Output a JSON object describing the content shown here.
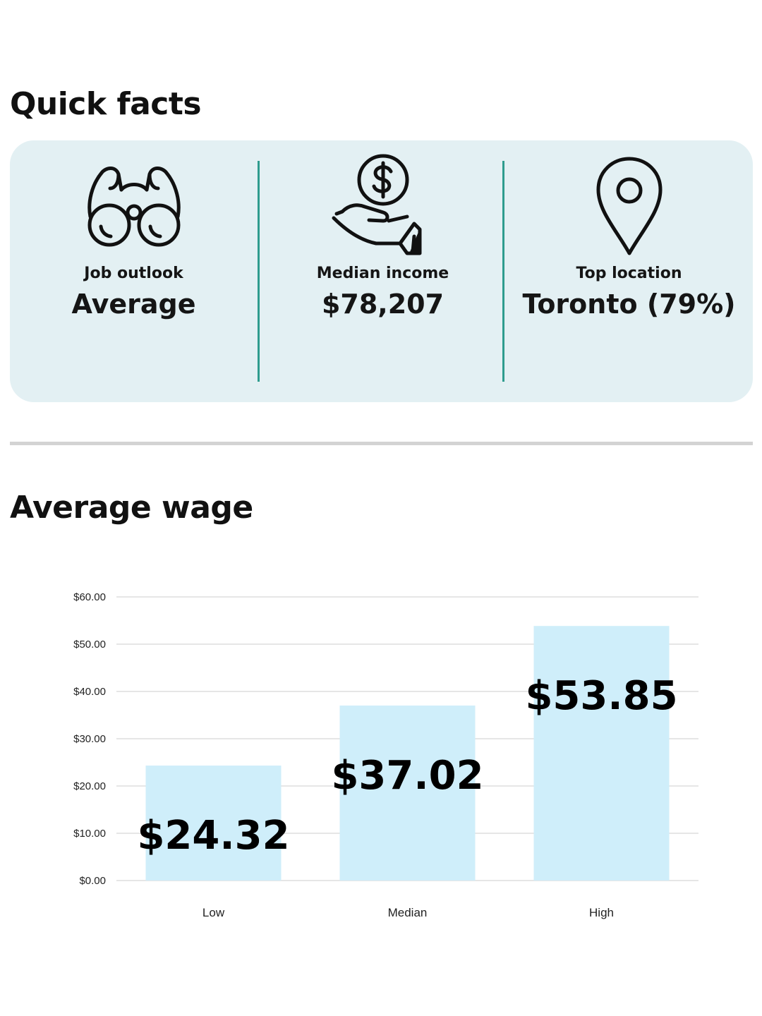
{
  "quick_facts": {
    "title": "Quick facts",
    "items": [
      {
        "icon": "binoculars-icon",
        "label": "Job outlook",
        "value": "Average"
      },
      {
        "icon": "money-hand-icon",
        "label": "Median income",
        "value": "$78,207"
      },
      {
        "icon": "location-pin-icon",
        "label": "Top location",
        "value": "Toronto (79%)"
      }
    ]
  },
  "average_wage": {
    "title": "Average wage"
  },
  "colors": {
    "card_background": "#e3f0f3",
    "divider": "#2e9c8e",
    "bar": "#cfeefa",
    "gridline": "#dddddd"
  },
  "chart_data": {
    "type": "bar",
    "categories": [
      "Low",
      "Median",
      "High"
    ],
    "values": [
      24.32,
      37.02,
      53.85
    ],
    "value_labels": [
      "$24.32",
      "$37.02",
      "$53.85"
    ],
    "ylim": [
      0,
      60
    ],
    "yticks": [
      0,
      10,
      20,
      30,
      40,
      50,
      60
    ],
    "ytick_labels": [
      "$0.00",
      "$10.00",
      "$20.00",
      "$30.00",
      "$40.00",
      "$50.00",
      "$60.00"
    ],
    "grid": true,
    "legend": "none"
  }
}
